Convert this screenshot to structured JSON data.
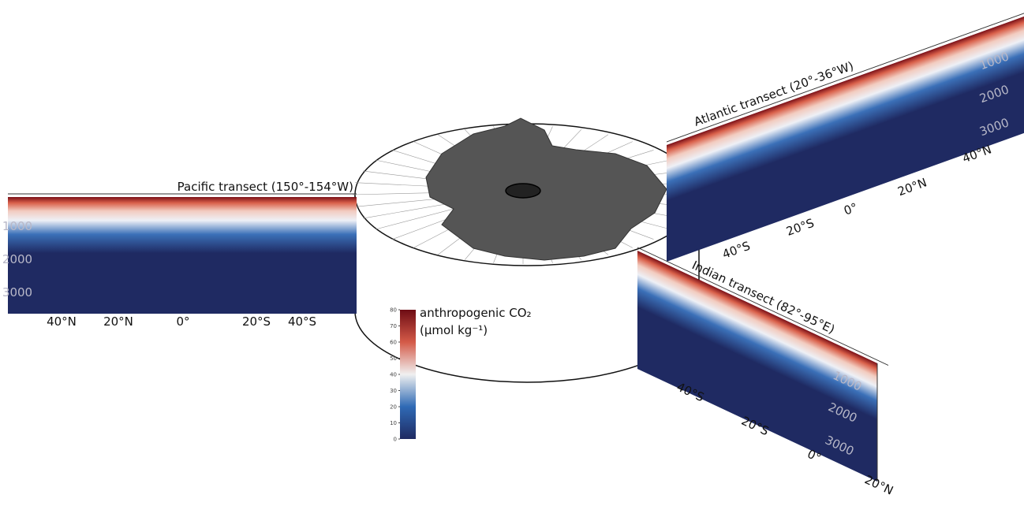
{
  "pacific": {
    "title": "Pacific transect (150°-154°W)",
    "depths": [
      "1000",
      "2000",
      "3000"
    ],
    "latitudes": [
      "40°N",
      "20°N",
      "0°",
      "20°S",
      "40°S"
    ]
  },
  "atlantic": {
    "title": "Atlantic transect (20°-36°W)",
    "depths": [
      "1000",
      "2000",
      "3000"
    ],
    "latitudes": [
      "40°S",
      "20°S",
      "0°",
      "20°N",
      "40°N"
    ]
  },
  "indian": {
    "title": "Indian transect (82°-95°E)",
    "depths": [
      "1000",
      "2000",
      "3000"
    ],
    "latitudes": [
      "40°S",
      "20°S",
      "0°",
      "20°N"
    ]
  },
  "colorbar": {
    "label": "anthropogenic CO₂",
    "units": "(µmol kg⁻¹)",
    "lim": [
      0,
      80
    ],
    "ticks": [
      0,
      10,
      20,
      30,
      40,
      50,
      60,
      70,
      80
    ]
  }
}
